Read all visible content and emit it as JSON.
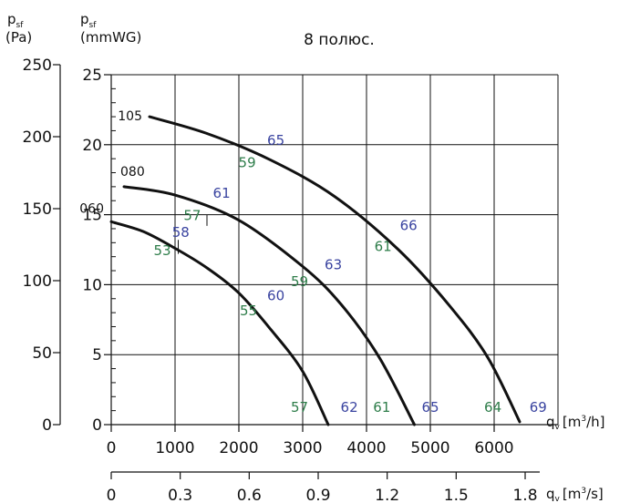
{
  "chart_data": {
    "type": "line",
    "title": "8 полюс.",
    "y_left_label": {
      "main": "p",
      "sub": "sf",
      "unit": "(Pa)"
    },
    "y_right_label": {
      "main": "p",
      "sub": "sf",
      "unit": "(mmWG)"
    },
    "x1_label": {
      "main": "q",
      "sub": "v",
      "unit_pre": "[m",
      "sup": "3",
      "unit_post": "/h]"
    },
    "x2_label": {
      "main": "q",
      "sub": "v",
      "unit_pre": "[m",
      "sup": "3",
      "unit_post": "/s]"
    },
    "x1_ticks": [
      "0",
      "1000",
      "2000",
      "3000",
      "4000",
      "5000",
      "6000"
    ],
    "x2_ticks": [
      "0",
      "0.3",
      "0.6",
      "0.9",
      "1.2",
      "1.5",
      "1.8"
    ],
    "y_left_ticks": [
      "0",
      "50",
      "100",
      "150",
      "200",
      "250"
    ],
    "y_right_ticks": [
      "0",
      "5",
      "10",
      "15",
      "20",
      "25"
    ],
    "xlim_m3h": [
      0,
      7000
    ],
    "ylim_mmWG": [
      0,
      25
    ],
    "grid": true,
    "series": [
      {
        "name": "060",
        "x": [
          0,
          500,
          1000,
          1500,
          2000,
          2500,
          3000,
          3400
        ],
        "y": [
          14.5,
          13.8,
          12.6,
          11.2,
          9.4,
          6.8,
          3.8,
          0
        ]
      },
      {
        "name": "080",
        "x": [
          200,
          1000,
          2000,
          3000,
          3600,
          4200,
          4750
        ],
        "y": [
          17,
          16.4,
          14.6,
          11.3,
          8.6,
          4.8,
          0
        ]
      },
      {
        "name": "105",
        "x": [
          600,
          1500,
          2500,
          3500,
          4500,
          5300,
          5900,
          6400
        ],
        "y": [
          22,
          20.8,
          18.9,
          16.3,
          12.5,
          8.5,
          4.8,
          0.2
        ]
      }
    ],
    "annotations": [
      {
        "text": "53",
        "color": "#2e7d4a",
        "x": 800,
        "y": 12.1
      },
      {
        "text": "58",
        "color": "#3a44a0",
        "x": 1090,
        "y": 13.4
      },
      {
        "text": "57",
        "color": "#2e7d4a",
        "x": 1270,
        "y": 14.6
      },
      {
        "text": "61",
        "color": "#3a44a0",
        "x": 1730,
        "y": 16.2
      },
      {
        "text": "59",
        "color": "#2e7d4a",
        "x": 2130,
        "y": 18.4
      },
      {
        "text": "65",
        "color": "#3a44a0",
        "x": 2580,
        "y": 20.0
      },
      {
        "text": "55",
        "color": "#2e7d4a",
        "x": 2150,
        "y": 7.8
      },
      {
        "text": "60",
        "color": "#3a44a0",
        "x": 2580,
        "y": 8.9
      },
      {
        "text": "59",
        "color": "#2e7d4a",
        "x": 2950,
        "y": 9.9
      },
      {
        "text": "63",
        "color": "#3a44a0",
        "x": 3480,
        "y": 11.1
      },
      {
        "text": "61",
        "color": "#2e7d4a",
        "x": 4260,
        "y": 12.4
      },
      {
        "text": "66",
        "color": "#3a44a0",
        "x": 4660,
        "y": 13.9
      },
      {
        "text": "57",
        "color": "#2e7d4a",
        "x": 2950,
        "y": 0.9
      },
      {
        "text": "62",
        "color": "#3a44a0",
        "x": 3730,
        "y": 0.9
      },
      {
        "text": "61",
        "color": "#2e7d4a",
        "x": 4240,
        "y": 0.9
      },
      {
        "text": "65",
        "color": "#3a44a0",
        "x": 5000,
        "y": 0.9
      },
      {
        "text": "64",
        "color": "#2e7d4a",
        "x": 5980,
        "y": 0.9
      },
      {
        "text": "69",
        "color": "#3a44a0",
        "x": 6690,
        "y": 0.9
      }
    ],
    "marker_lines": [
      {
        "x": 1050,
        "y1": 12.2,
        "y2": 13.2
      },
      {
        "x": 1500,
        "y1": 14.2,
        "y2": 15.0
      },
      {
        "x": 2000,
        "y1": 19.2,
        "y2": 20.1
      },
      {
        "x": 2000,
        "y1": 7.8,
        "y2": 10.4
      },
      {
        "x": 3000,
        "y1": 9.6,
        "y2": 10.6
      },
      {
        "x": 3000,
        "y1": 0,
        "y2": 4.5
      },
      {
        "x": 4000,
        "y1": 12.2,
        "y2": 13.8
      },
      {
        "x": 4000,
        "y1": 0,
        "y2": 2.2
      },
      {
        "x": 6000,
        "y1": 0,
        "y2": 2.6
      }
    ],
    "minor_y_ticks_mmWG": [
      1,
      2,
      3,
      4,
      6,
      7,
      8,
      9,
      11,
      12,
      13,
      14,
      16,
      17,
      18,
      19,
      21,
      22,
      23,
      24
    ]
  }
}
